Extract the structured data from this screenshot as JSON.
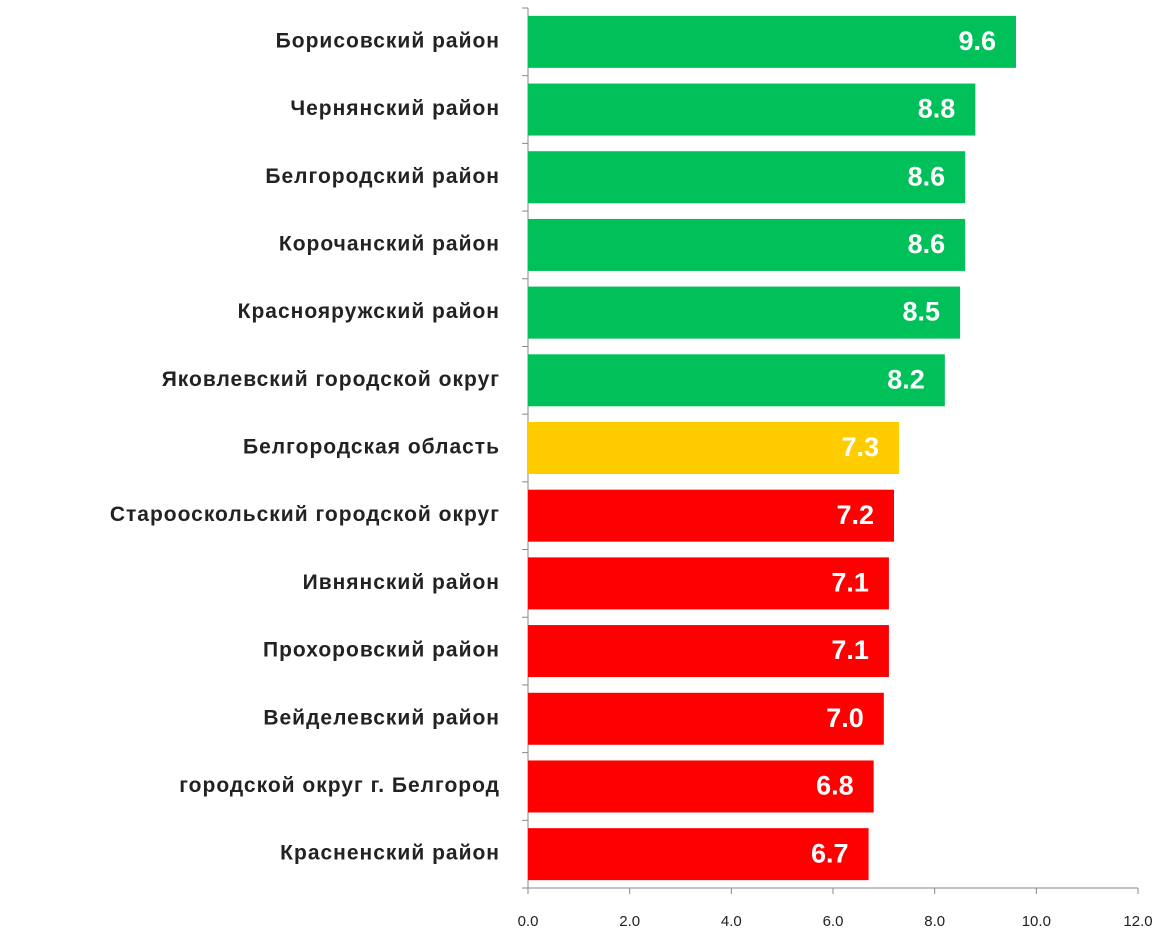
{
  "chart_data": {
    "type": "barh",
    "categories": [
      "Борисовский район",
      "Чернянский район",
      "Белгородский район",
      "Корочанский район",
      "Краснояружский район",
      "Яковлевский городской округ",
      "Белгородская область",
      "Старооскольский городской округ",
      "Ивнянский район",
      "Прохоровский район",
      "Вейделевский район",
      "городской округ г. Белгород",
      "Красненский район"
    ],
    "values": [
      9.6,
      8.8,
      8.6,
      8.6,
      8.5,
      8.2,
      7.3,
      7.2,
      7.1,
      7.1,
      7.0,
      6.8,
      6.7
    ],
    "value_labels": [
      "9.6",
      "8.8",
      "8.6",
      "8.6",
      "8.5",
      "8.2",
      "7.3",
      "7.2",
      "7.1",
      "7.1",
      "7.0",
      "6.8",
      "6.7"
    ],
    "colors": [
      "#00c05a",
      "#00c05a",
      "#00c05a",
      "#00c05a",
      "#00c05a",
      "#00c05a",
      "#ffcc00",
      "#ff0000",
      "#ff0000",
      "#ff0000",
      "#ff0000",
      "#ff0000",
      "#ff0000"
    ],
    "xlim": [
      0,
      12
    ],
    "xticks": [
      {
        "value": 0,
        "label": "0.0"
      },
      {
        "value": 2,
        "label": "2.0"
      },
      {
        "value": 4,
        "label": "4.0"
      },
      {
        "value": 6,
        "label": "6.0"
      },
      {
        "value": 8,
        "label": "8.0"
      },
      {
        "value": 10,
        "label": "10.0"
      },
      {
        "value": 12,
        "label": "12.0"
      }
    ]
  }
}
